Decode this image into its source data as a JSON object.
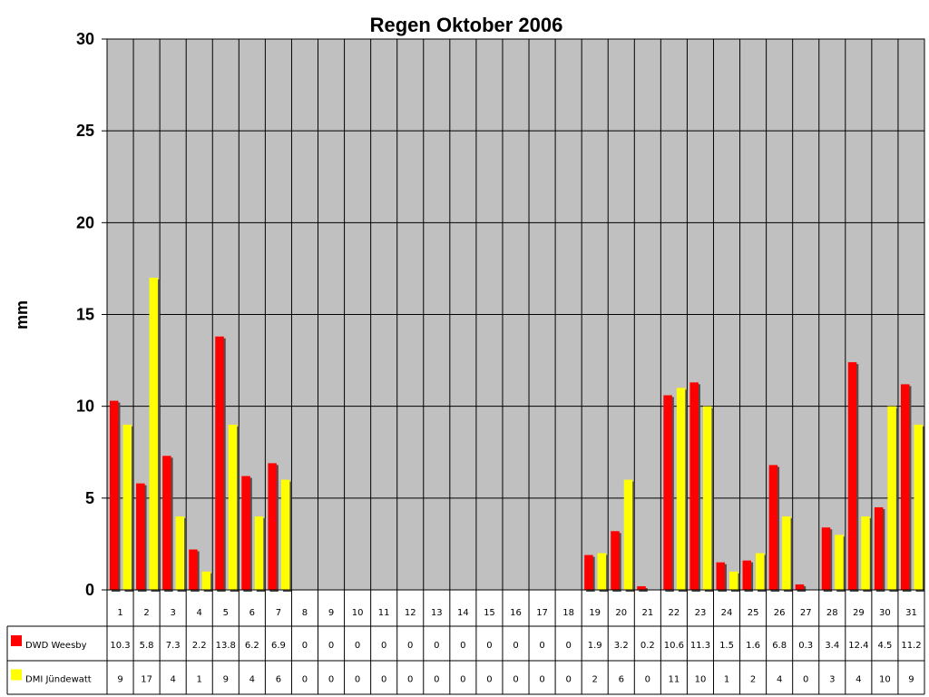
{
  "chart_data": {
    "type": "bar",
    "title": "Regen Oktober 2006",
    "ylabel": "mm",
    "xlabel": "",
    "ylim": [
      0,
      30
    ],
    "yticks": [
      0,
      5,
      10,
      15,
      20,
      25,
      30
    ],
    "grid": true,
    "legend_position": "bottom-left data table",
    "plot_background": "#C0C0C0",
    "categories": [
      "1",
      "2",
      "3",
      "4",
      "5",
      "6",
      "7",
      "8",
      "9",
      "10",
      "11",
      "12",
      "13",
      "14",
      "15",
      "16",
      "17",
      "18",
      "19",
      "20",
      "21",
      "22",
      "23",
      "24",
      "25",
      "26",
      "27",
      "28",
      "29",
      "30",
      "31"
    ],
    "series": [
      {
        "name": "DWD Weesby",
        "color": "#FF0000",
        "values": [
          10.3,
          5.8,
          7.3,
          2.2,
          13.8,
          6.2,
          6.9,
          0,
          0,
          0,
          0,
          0,
          0,
          0,
          0,
          0,
          0,
          0,
          1.9,
          3.2,
          0.2,
          10.6,
          11.3,
          1.5,
          1.6,
          6.8,
          0.3,
          3.4,
          12.4,
          4.5,
          11.2
        ]
      },
      {
        "name": "DMI Jündewatt",
        "color": "#FFFF00",
        "values": [
          9,
          17,
          4,
          1,
          9,
          4,
          6,
          0,
          0,
          0,
          0,
          0,
          0,
          0,
          0,
          0,
          0,
          0,
          2,
          6,
          0,
          11,
          10,
          1,
          2,
          4,
          0,
          3,
          4,
          10,
          9
        ]
      }
    ]
  }
}
